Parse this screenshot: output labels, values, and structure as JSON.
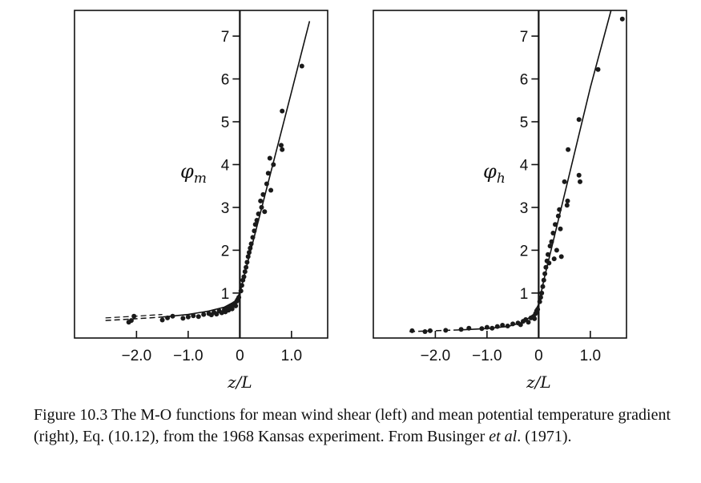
{
  "chart_data": [
    {
      "type": "scatter",
      "ylabel_base": "φ",
      "ylabel_sub": "m",
      "xlabel": "z/L",
      "xlim": [
        -3.2,
        1.7
      ],
      "ylim": [
        -0.05,
        7.6
      ],
      "x_ticks": [
        -2.0,
        -1.0,
        0,
        1.0
      ],
      "x_tick_labels": [
        "−2.0",
        "−1.0",
        "0",
        "1.0"
      ],
      "y_ticks": [
        1,
        2,
        3,
        4,
        5,
        6,
        7
      ],
      "y_tick_labels": [
        "1",
        "2",
        "3",
        "4",
        "5",
        "6",
        "7"
      ],
      "curve_fit": [
        {
          "x": -2.6,
          "y": 0.36
        },
        {
          "x": -2.0,
          "y": 0.4
        },
        {
          "x": -1.5,
          "y": 0.44
        },
        {
          "x": -1.0,
          "y": 0.5
        },
        {
          "x": -0.6,
          "y": 0.58
        },
        {
          "x": -0.3,
          "y": 0.67
        },
        {
          "x": -0.1,
          "y": 0.8
        },
        {
          "x": 0.0,
          "y": 1.0
        },
        {
          "x": 0.1,
          "y": 1.47
        },
        {
          "x": 0.5,
          "y": 3.35
        },
        {
          "x": 1.0,
          "y": 5.7
        },
        {
          "x": 1.35,
          "y": 7.35
        }
      ],
      "points": [
        {
          "x": -2.05,
          "y": 0.46
        },
        {
          "x": -2.15,
          "y": 0.32
        },
        {
          "x": -2.1,
          "y": 0.36
        },
        {
          "x": -1.5,
          "y": 0.37
        },
        {
          "x": -1.4,
          "y": 0.42
        },
        {
          "x": -1.3,
          "y": 0.46
        },
        {
          "x": -1.1,
          "y": 0.41
        },
        {
          "x": -1.0,
          "y": 0.44
        },
        {
          "x": -0.9,
          "y": 0.47
        },
        {
          "x": -0.8,
          "y": 0.45
        },
        {
          "x": -0.7,
          "y": 0.5
        },
        {
          "x": -0.6,
          "y": 0.52
        },
        {
          "x": -0.55,
          "y": 0.49
        },
        {
          "x": -0.5,
          "y": 0.55
        },
        {
          "x": -0.45,
          "y": 0.51
        },
        {
          "x": -0.4,
          "y": 0.58
        },
        {
          "x": -0.35,
          "y": 0.54
        },
        {
          "x": -0.3,
          "y": 0.61
        },
        {
          "x": -0.28,
          "y": 0.56
        },
        {
          "x": -0.25,
          "y": 0.64
        },
        {
          "x": -0.22,
          "y": 0.6
        },
        {
          "x": -0.2,
          "y": 0.66
        },
        {
          "x": -0.18,
          "y": 0.7
        },
        {
          "x": -0.15,
          "y": 0.63
        },
        {
          "x": -0.12,
          "y": 0.72
        },
        {
          "x": -0.1,
          "y": 0.76
        },
        {
          "x": -0.08,
          "y": 0.7
        },
        {
          "x": -0.06,
          "y": 0.81
        },
        {
          "x": -0.04,
          "y": 0.85
        },
        {
          "x": -0.02,
          "y": 0.9
        },
        {
          "x": 0.02,
          "y": 1.05
        },
        {
          "x": 0.04,
          "y": 1.18
        },
        {
          "x": 0.06,
          "y": 1.3
        },
        {
          "x": 0.08,
          "y": 1.38
        },
        {
          "x": 0.1,
          "y": 1.5
        },
        {
          "x": 0.12,
          "y": 1.6
        },
        {
          "x": 0.14,
          "y": 1.72
        },
        {
          "x": 0.16,
          "y": 1.85
        },
        {
          "x": 0.18,
          "y": 1.95
        },
        {
          "x": 0.2,
          "y": 2.05
        },
        {
          "x": 0.22,
          "y": 2.15
        },
        {
          "x": 0.25,
          "y": 2.3
        },
        {
          "x": 0.28,
          "y": 2.45
        },
        {
          "x": 0.3,
          "y": 2.6
        },
        {
          "x": 0.33,
          "y": 2.7
        },
        {
          "x": 0.36,
          "y": 2.85
        },
        {
          "x": 0.4,
          "y": 3.15
        },
        {
          "x": 0.42,
          "y": 3.0
        },
        {
          "x": 0.45,
          "y": 3.3
        },
        {
          "x": 0.48,
          "y": 2.9
        },
        {
          "x": 0.52,
          "y": 3.55
        },
        {
          "x": 0.55,
          "y": 3.8
        },
        {
          "x": 0.58,
          "y": 4.15
        },
        {
          "x": 0.6,
          "y": 3.4
        },
        {
          "x": 0.65,
          "y": 4.0
        },
        {
          "x": 0.8,
          "y": 4.45
        },
        {
          "x": 0.82,
          "y": 4.35
        },
        {
          "x": 0.82,
          "y": 5.25
        },
        {
          "x": 1.2,
          "y": 6.3
        }
      ]
    },
    {
      "type": "scatter",
      "ylabel_base": "φ",
      "ylabel_sub": "h",
      "xlabel": "z/L",
      "xlim": [
        -3.2,
        1.7
      ],
      "ylim": [
        -0.05,
        7.6
      ],
      "x_ticks": [
        -2.0,
        -1.0,
        0,
        1.0
      ],
      "x_tick_labels": [
        "−2.0",
        "−1.0",
        "0",
        "1.0"
      ],
      "y_ticks": [
        1,
        2,
        3,
        4,
        5,
        6,
        7
      ],
      "y_tick_labels": [
        "1",
        "2",
        "3",
        "4",
        "5",
        "6",
        "7"
      ],
      "curve_fit": [
        {
          "x": -2.5,
          "y": 0.1
        },
        {
          "x": -2.0,
          "y": 0.12
        },
        {
          "x": -1.5,
          "y": 0.14
        },
        {
          "x": -1.0,
          "y": 0.17
        },
        {
          "x": -0.6,
          "y": 0.22
        },
        {
          "x": -0.3,
          "y": 0.32
        },
        {
          "x": -0.1,
          "y": 0.5
        },
        {
          "x": 0.0,
          "y": 0.74
        },
        {
          "x": 0.1,
          "y": 1.3
        },
        {
          "x": 0.5,
          "y": 3.3
        },
        {
          "x": 1.0,
          "y": 5.8
        },
        {
          "x": 1.4,
          "y": 7.6
        }
      ],
      "points": [
        {
          "x": -2.45,
          "y": 0.12
        },
        {
          "x": -2.2,
          "y": 0.1
        },
        {
          "x": -2.1,
          "y": 0.12
        },
        {
          "x": -1.8,
          "y": 0.13
        },
        {
          "x": -1.5,
          "y": 0.15
        },
        {
          "x": -1.35,
          "y": 0.18
        },
        {
          "x": -1.1,
          "y": 0.17
        },
        {
          "x": -1.0,
          "y": 0.2
        },
        {
          "x": -0.9,
          "y": 0.18
        },
        {
          "x": -0.8,
          "y": 0.22
        },
        {
          "x": -0.7,
          "y": 0.25
        },
        {
          "x": -0.6,
          "y": 0.23
        },
        {
          "x": -0.5,
          "y": 0.28
        },
        {
          "x": -0.4,
          "y": 0.3
        },
        {
          "x": -0.35,
          "y": 0.26
        },
        {
          "x": -0.3,
          "y": 0.34
        },
        {
          "x": -0.25,
          "y": 0.38
        },
        {
          "x": -0.2,
          "y": 0.32
        },
        {
          "x": -0.15,
          "y": 0.42
        },
        {
          "x": -0.1,
          "y": 0.45
        },
        {
          "x": -0.08,
          "y": 0.4
        },
        {
          "x": -0.06,
          "y": 0.52
        },
        {
          "x": -0.04,
          "y": 0.58
        },
        {
          "x": -0.02,
          "y": 0.62
        },
        {
          "x": 0.02,
          "y": 0.8
        },
        {
          "x": 0.04,
          "y": 0.9
        },
        {
          "x": 0.06,
          "y": 1.0
        },
        {
          "x": 0.08,
          "y": 1.15
        },
        {
          "x": 0.1,
          "y": 1.3
        },
        {
          "x": 0.12,
          "y": 1.45
        },
        {
          "x": 0.14,
          "y": 1.6
        },
        {
          "x": 0.16,
          "y": 1.75
        },
        {
          "x": 0.18,
          "y": 1.9
        },
        {
          "x": 0.2,
          "y": 1.7
        },
        {
          "x": 0.22,
          "y": 2.1
        },
        {
          "x": 0.25,
          "y": 2.2
        },
        {
          "x": 0.28,
          "y": 2.4
        },
        {
          "x": 0.3,
          "y": 1.8
        },
        {
          "x": 0.32,
          "y": 2.6
        },
        {
          "x": 0.35,
          "y": 2.0
        },
        {
          "x": 0.38,
          "y": 2.8
        },
        {
          "x": 0.4,
          "y": 2.95
        },
        {
          "x": 0.42,
          "y": 2.5
        },
        {
          "x": 0.44,
          "y": 1.85
        },
        {
          "x": 0.5,
          "y": 3.6
        },
        {
          "x": 0.55,
          "y": 3.05
        },
        {
          "x": 0.56,
          "y": 3.15
        },
        {
          "x": 0.57,
          "y": 4.35
        },
        {
          "x": 0.78,
          "y": 3.75
        },
        {
          "x": 0.8,
          "y": 3.6
        },
        {
          "x": 0.78,
          "y": 5.05
        },
        {
          "x": 1.15,
          "y": 6.22
        },
        {
          "x": 1.62,
          "y": 7.4
        }
      ]
    }
  ],
  "caption": {
    "part1": "Figure 10.3 The M-O functions for mean wind shear (left) and mean potential temperature gradient (right), Eq. (10.12), from the 1968 Kansas experiment. From Businger ",
    "italic": "et al",
    "part2": ". (1971)."
  }
}
